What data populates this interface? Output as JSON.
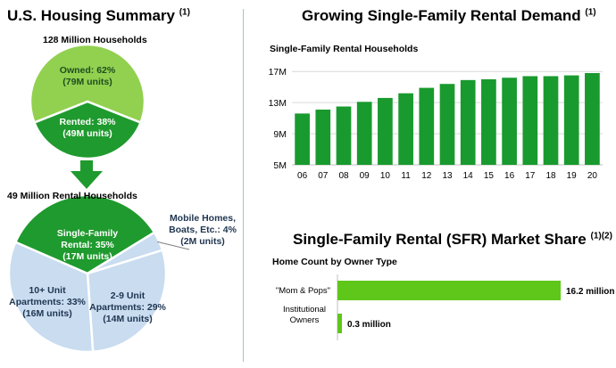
{
  "left": {
    "title": "U.S. Housing Summary",
    "title_sup": "(1)",
    "households_label": "128 Million Households",
    "rental_households_label": "49 Million Rental Households"
  },
  "right_top": {
    "title": "Growing Single-Family Rental Demand",
    "title_sup": "(1)",
    "subtitle": "Single-Family Rental Households"
  },
  "right_bottom": {
    "title": "Single-Family Rental (SFR) Market Share",
    "title_sup": "(1)(2)",
    "subtitle": "Home Count by Owner Type"
  },
  "colors": {
    "light_green": "#92d050",
    "dark_green": "#1f9a2e",
    "bar_green": "#199a2e",
    "light_blue": "#c9dcf0",
    "arrow_green": "#1f9a2e",
    "share_green": "#5ec71a",
    "divider": "#8fd3b7"
  },
  "chart_data": [
    {
      "type": "pie",
      "title": "128 Million Households",
      "slices": [
        {
          "label": "Owned: 62%",
          "sublabel": "(79M units)",
          "value": 62
        },
        {
          "label": "Rented: 38%",
          "sublabel": "(49M units)",
          "value": 38
        }
      ]
    },
    {
      "type": "pie",
      "title": "49 Million Rental Households",
      "slices": [
        {
          "label": "Single-Family Rental: 35%",
          "sublabel": "(17M units)",
          "value": 35
        },
        {
          "label": "Mobile Homes, Boats, Etc.: 4%",
          "sublabel": "(2M units)",
          "value": 4
        },
        {
          "label": "2-9 Unit Apartments: 29%",
          "sublabel": "(14M units)",
          "value": 29
        },
        {
          "label": "10+ Unit Apartments: 33%",
          "sublabel": "(16M units)",
          "value": 33
        }
      ]
    },
    {
      "type": "bar",
      "title": "Single-Family Rental Households",
      "categories": [
        "06",
        "07",
        "08",
        "09",
        "10",
        "11",
        "12",
        "13",
        "14",
        "15",
        "16",
        "17",
        "18",
        "19",
        "20"
      ],
      "values": [
        11.6,
        12.1,
        12.5,
        13.1,
        13.6,
        14.2,
        14.9,
        15.4,
        15.9,
        16.0,
        16.2,
        16.4,
        16.4,
        16.5,
        16.8
      ],
      "yticks": [
        "5M",
        "9M",
        "13M",
        "17M"
      ],
      "ylim": [
        5,
        17.6
      ],
      "grid": true
    },
    {
      "type": "bar",
      "orientation": "horizontal",
      "title": "Home Count by Owner Type",
      "categories": [
        "\"Mom & Pops\"",
        "Institutional Owners"
      ],
      "values": [
        16.2,
        0.3
      ],
      "value_labels": [
        "16.2 million",
        "0.3 million"
      ]
    }
  ]
}
